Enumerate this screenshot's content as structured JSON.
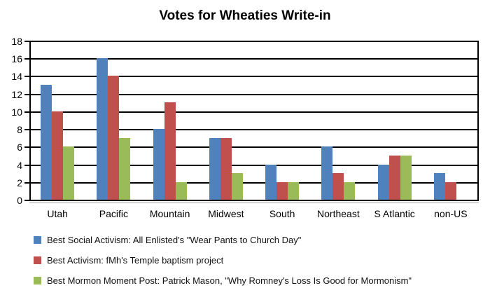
{
  "title": "Votes for Wheaties Write-in",
  "chart_data": {
    "type": "bar",
    "title": "Votes for Wheaties Write-in",
    "xlabel": "",
    "ylabel": "",
    "ylim": [
      0,
      18
    ],
    "ytick_step": 2,
    "yticks": [
      0,
      2,
      4,
      6,
      8,
      10,
      12,
      14,
      16,
      18
    ],
    "grid": true,
    "legend_position": "bottom-left",
    "categories": [
      "Utah",
      "Pacific",
      "Mountain",
      "Midwest",
      "South",
      "Northeast",
      "S Atlantic",
      "non-US"
    ],
    "series": [
      {
        "name": "Best Social Activism: All Enlisted's \"Wear Pants to Church Day\"",
        "color": "#4F81BD",
        "values": [
          13,
          16,
          8,
          7,
          4,
          6,
          4,
          3
        ]
      },
      {
        "name": "Best Activism: fMh's Temple baptism project",
        "color": "#C0504D",
        "values": [
          10,
          14,
          11,
          7,
          2,
          3,
          5,
          2
        ]
      },
      {
        "name": "Best Mormon Moment Post: Patrick Mason, \"Why Romney's Loss Is Good for Mormonism\"",
        "color": "#9BBB59",
        "values": [
          6,
          7,
          2,
          3,
          2,
          2,
          5,
          0
        ]
      }
    ]
  },
  "colors": {
    "background": "#FFFFFF",
    "gridline": "#000000",
    "axis": "#000000",
    "text": "#000000"
  }
}
